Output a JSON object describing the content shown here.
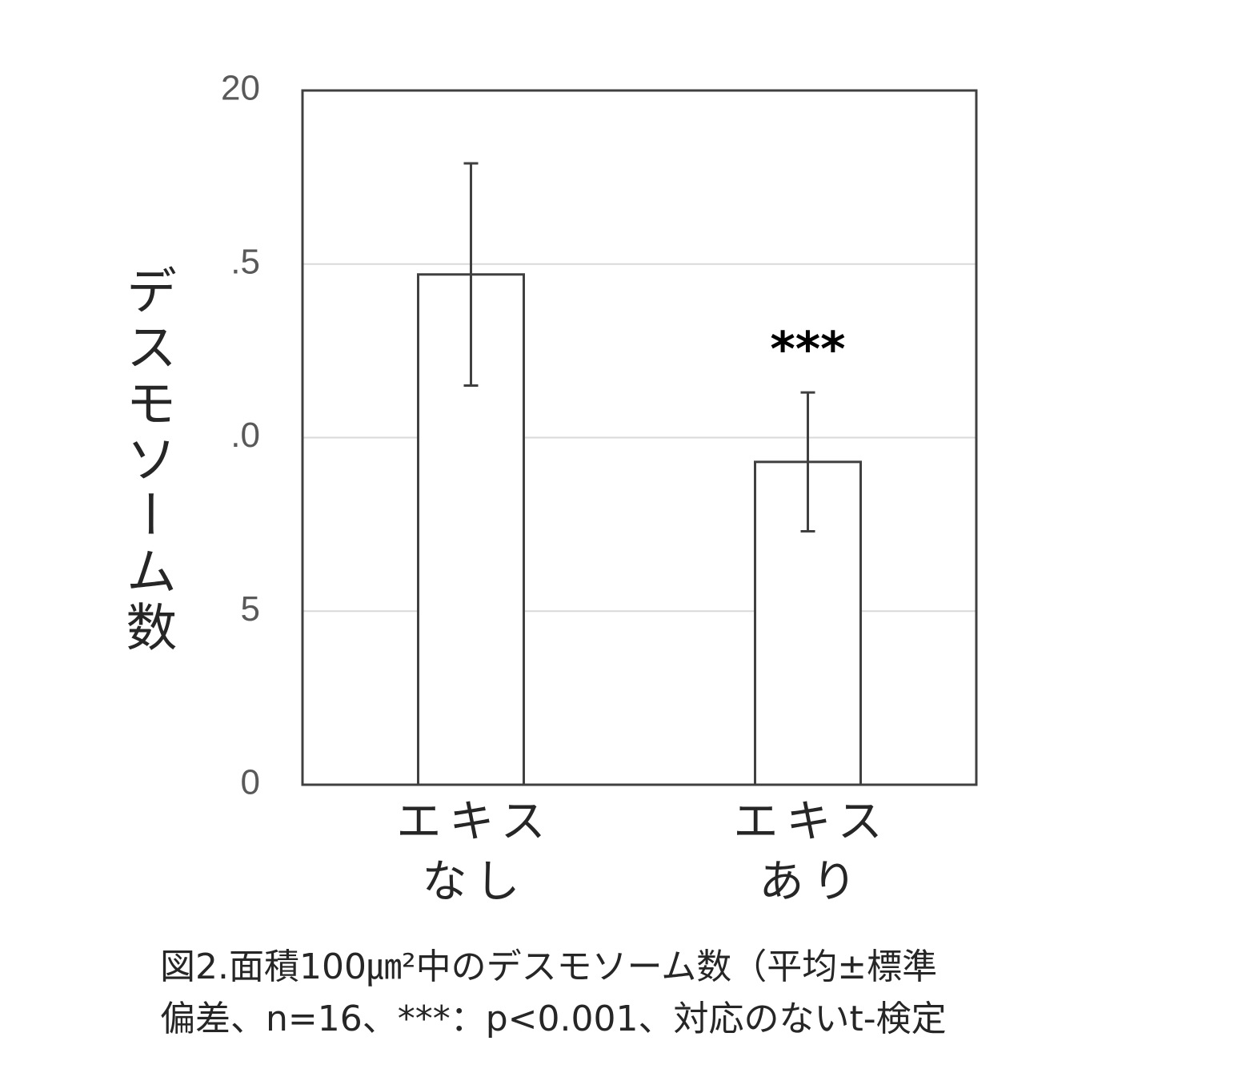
{
  "chart_data": {
    "type": "bar",
    "y_label": "デスモソーム数",
    "categories": [
      [
        "エキス",
        "なし"
      ],
      [
        "エキス",
        "あり"
      ]
    ],
    "values": [
      14.7,
      9.3
    ],
    "errors": [
      3.2,
      2.0
    ],
    "color": "#ffffff",
    "edge_color": "#404040",
    "annotations": [
      {
        "text": "***",
        "category": 1
      }
    ],
    "ylim": [
      0,
      20
    ],
    "yticks": [
      0,
      5,
      {
        "value": 10,
        "label": ".0"
      },
      {
        "value": 15,
        "label": ".5"
      },
      20
    ],
    "grid": true,
    "caption": [
      "図2.面積100㎛²中のデスモソーム数（平均±標準",
      "偏差、n=16、***：p<0.001、対応のないt-検定"
    ]
  }
}
